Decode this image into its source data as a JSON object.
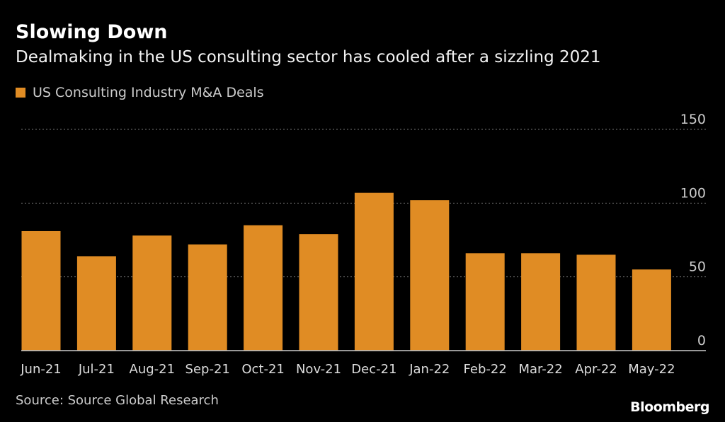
{
  "chart_data": {
    "type": "bar",
    "title": "Slowing Down",
    "subtitle": "Dealmaking in the US consulting sector has cooled after a sizzling 2021",
    "legend": [
      "US Consulting Industry M&A Deals"
    ],
    "legend_placement": "top-left",
    "categories": [
      "Jun-21",
      "Jul-21",
      "Aug-21",
      "Sep-21",
      "Oct-21",
      "Nov-21",
      "Dec-21",
      "Jan-22",
      "Feb-22",
      "Mar-22",
      "Apr-22",
      "May-22"
    ],
    "series": [
      {
        "name": "US Consulting Industry M&A Deals",
        "values": [
          81,
          64,
          78,
          72,
          85,
          79,
          107,
          102,
          66,
          66,
          65,
          55
        ]
      }
    ],
    "ylim": [
      0,
      150
    ],
    "yticks": [
      "0",
      "50",
      "100",
      "150"
    ],
    "ytick_values": [
      0,
      50,
      100,
      150
    ],
    "xlabel": "",
    "ylabel": "",
    "grid": true,
    "bar_color": "#e08c24"
  },
  "footer": {
    "source": "Source: Source Global Research",
    "logo": "Bloomberg"
  }
}
